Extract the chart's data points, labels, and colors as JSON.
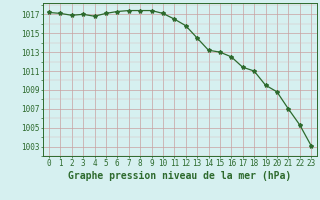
{
  "x": [
    0,
    1,
    2,
    3,
    4,
    5,
    6,
    7,
    8,
    9,
    10,
    11,
    12,
    13,
    14,
    15,
    16,
    17,
    18,
    19,
    20,
    21,
    22,
    23
  ],
  "y": [
    1017.2,
    1017.1,
    1016.9,
    1017.0,
    1016.8,
    1017.1,
    1017.3,
    1017.4,
    1017.4,
    1017.4,
    1017.1,
    1016.5,
    1015.8,
    1014.5,
    1013.2,
    1013.0,
    1012.5,
    1011.4,
    1011.0,
    1009.5,
    1008.8,
    1007.0,
    1005.3,
    1003.1
  ],
  "line_color": "#2d6a2d",
  "marker": "*",
  "marker_size": 3,
  "bg_color": "#d6f0f0",
  "grid_major_color": "#c8a0a0",
  "grid_minor_color": "#d8b8b8",
  "ylabel_ticks": [
    1003,
    1005,
    1007,
    1009,
    1011,
    1013,
    1015,
    1017
  ],
  "ylim": [
    1002.0,
    1018.2
  ],
  "xlim": [
    -0.5,
    23.5
  ],
  "xlabel": "Graphe pression niveau de la mer (hPa)",
  "tick_fontsize": 5.5,
  "label_fontsize": 7.0
}
